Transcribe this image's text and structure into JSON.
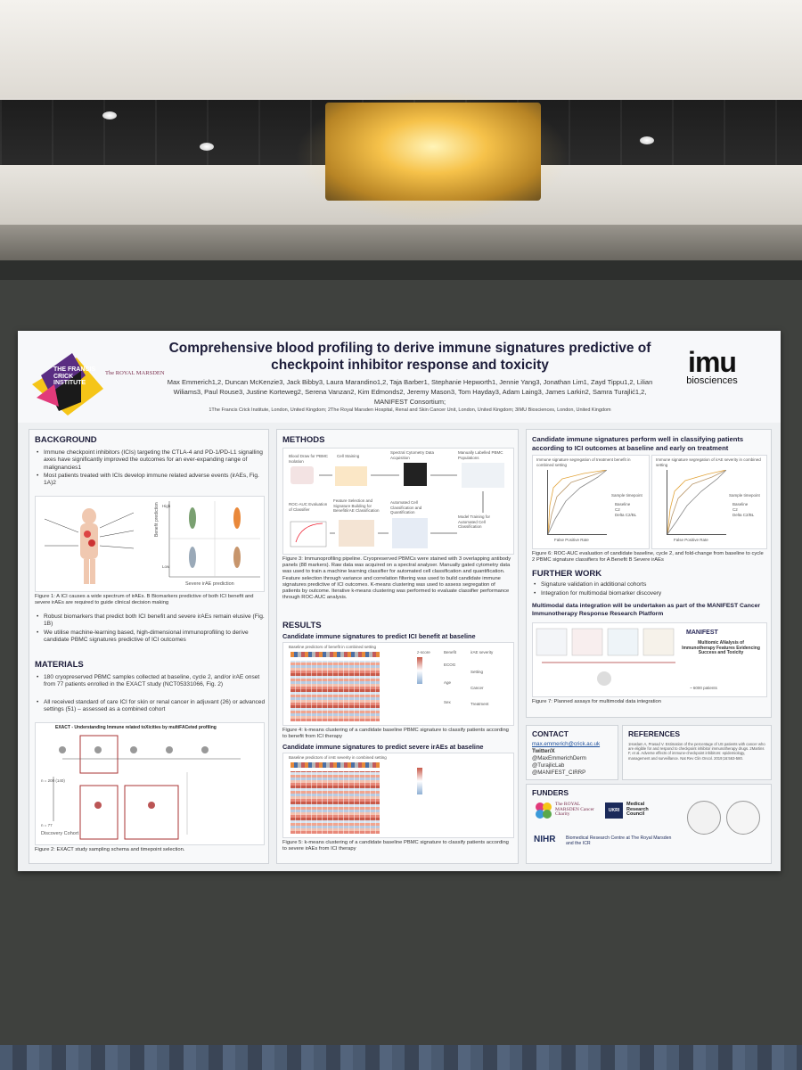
{
  "poster": {
    "title": "Comprehensive blood profiling to derive immune signatures predictive of checkpoint inhibitor response and toxicity",
    "authors": "Max Emmerich1,2, Duncan McKenzie3, Jack Bibby3, Laura Marandino1,2, Taja Barber1, Stephanie Hepworth1, Jennie Yang3, Jonathan Lim1, Zayd Tippu1,2, Lilian Wiliams3, Paul Rouse3, Justine Korteweg2, Serena Vanzan2, Kim Edmonds2, Jeremy Mason3, Tom Hayday3, Adam Laing3, James Larkin2, Samra Turajlić1,2, MANIFEST Consortium;",
    "affiliations": "1The Francis Crick Institute, London, United Kingdom; 2The Royal Marsden Hospital, Renal and Skin Cancer Unit, London, United Kingdom; 3IMU Biosciences, London, United Kingdom",
    "logos": {
      "crick": "THE FRANCIS CRICK INSTITUTE",
      "royal_marsden": "The ROYAL MARSDEN",
      "imu_main": "imu",
      "imu_sub": "biosciences"
    },
    "background": {
      "heading": "BACKGROUND",
      "bullets": [
        "Immune checkpoint inhibitors (ICIs) targeting the CTLA-4 and PD-1/PD-L1 signalling axes have significantly improved the outcomes for an ever-expanding range of malignancies1",
        "Most patients treated with ICIs develop immune related adverse events (irAEs, Fig. 1A)2"
      ],
      "fig1_caption": "Figure 1: A ICI causes a wide spectrum of irAEs. B Biomarkers predictive of both ICI benefit and severe irAEs are required to guide clinical decision making",
      "fig1_ylabel": "Benefit prediction",
      "fig1_xlabel": "Severe irAE prediction",
      "fig1_high": "High",
      "fig1_low": "Low",
      "bullets2": [
        "Robust biomarkers that predict both ICI benefit and severe irAEs remain elusive (Fig. 1B)",
        "We utilise machine-learning based, high-dimensional immunoprofiling to derive candidate PBMC signatures predictive of ICI outcomes"
      ]
    },
    "materials": {
      "heading": "MATERIALS",
      "bullets": [
        "180 cryopreserved PBMC samples collected at baseline, cycle 2, and/or irAE onset from 77 patients enrolled in the EXACT study (NCT05331066, Fig. 2)",
        "All received standard of care ICI for skin or renal cancer in adjuvant (26) or advanced settings (51) – assessed as a combined cohort"
      ],
      "fig2_title": "EXACT - Understanding Immune related toXicities by multiFACeted profiling",
      "fig2_n1": "n = 200 (140)",
      "fig2_n2": "n = 77",
      "fig2_cohort": "Discovery Cohort",
      "fig2_caption": "Figure 2: EXACT study sampling schema and timepoint selection."
    },
    "methods": {
      "heading": "METHODS",
      "steps": [
        "Blood Draw for PBMC Isolation",
        "Cell Staining",
        "Spectral Cytometry Data Acquisition",
        "Manually Labelled PBMC Populations",
        "ROC-AUC Evaluation of Classifier",
        "Feature Selection and Signature Building for Benefit/irAE Classification",
        "Automated Cell Classification and Quantification",
        "Model Training for Automated Cell Classification"
      ],
      "fig3_caption": "Figure 3: Immunoprofiling pipeline. Cryopreserved PBMCs were stained with 3 overlapping antibody panels (88 markers). Raw data was acquired on a spectral analyser. Manually gated cytometry data was used to train a machine learning classifier for automated cell classification and quantification. Feature selection through variance and correlation filtering was used to build candidate immune signatures predictive of ICI outcomes. K-means clustering was used to assess segregation of patients by outcome. Iterative k-means clustering was performed to evaluate classifier performance through ROC-AUC analysis."
    },
    "results": {
      "heading": "RESULTS",
      "sub1": "Candidate immune signatures to predict ICI benefit at baseline",
      "fig4_title": "Baseline predictors of benefit in combined setting",
      "fig4_caption": "Figure 4: k-means clustering of a candidate baseline PBMC signature to classify patients according to benefit from ICI therapy",
      "sub2": "Candidate immune signatures to predict severe irAEs at baseline",
      "fig5_title": "Baseline predictors of irAE severity in combined setting",
      "fig5_caption": "Figure 5: k-means clustering of a candidate baseline PBMC signature to classify patients according to severe irAEs from ICI therapy",
      "legend_labels": [
        "z-score",
        "Benefit",
        "ECOG",
        "Age",
        "Sex",
        "irAE severity",
        "Setting",
        "Cancer",
        "Treatment"
      ]
    },
    "right": {
      "heading": "Candidate immune signatures perform well in classifying patients according to ICI outcomes at baseline and early on treatment",
      "roc1_title": "Immune signature segregation of treatment benefit in combined setting",
      "roc2_title": "Immune signature segregation of irAE severity in combined setting",
      "roc_x": "False Positive Rate",
      "roc_y": "True Positive Rate",
      "roc_legend_title": "Sample timepoint",
      "roc_legend": [
        "Baseline",
        "C2",
        "Delta C2/BL"
      ],
      "fig6_caption": "Figure 6: ROC-AUC evaluation of candidate baseline, cycle 2, and fold-change from baseline to cycle 2 PBMC signature classifiers for A Benefit B Severe irAEs",
      "further_heading": "FURTHER WORK",
      "further_bullets": [
        "Signature validation in additional cohorts",
        "Integration for multimodal biomarker discovery"
      ],
      "multimodal": "Multimodal data integration will be undertaken as part of the MANIFEST Cancer Immunotherapy Response Research Platform",
      "manifest": "MANIFEST",
      "manifest_sub": "Multiomic ANalysis of Immunotherapy Features Evidencing Success and Toxicity",
      "patients": "~ 6000 patients",
      "fig7_caption": "Figure 7: Planned assays for multimodal data integration",
      "contact_heading": "CONTACT",
      "contact_email": "max.emmerich@crick.ac.uk",
      "contact_tw": "Twitter/X",
      "contact_handles": [
        "@MaxEmmerichDerm",
        "@TurajlicLab",
        "@MANIFEST_CIRRP"
      ],
      "references_heading": "REFERENCES",
      "references_text": "1Haslam A, Prasad V. Estimation of the percentage of US patients with cancer who are eligible for and respond to checkpoint inhibitor immunotherapy drugs. 2Martins F, et al. Adverse effects of immune-checkpoint inhibitors: epidemiology, management and surveillance. Nat Rev Clin Oncol. 2019;16:563-580.",
      "funders_heading": "FUNDERS",
      "funder_rm": "The ROYAL MARSDEN Cancer Charity",
      "funder_ukri": "UKRI",
      "funder_mrc": "Medical Research Council",
      "funder_nihr": "NIHR",
      "funder_nihr_text": "Biomedical Research Centre at The Royal Marsden and the ICR"
    }
  },
  "colors": {
    "title": "#1d1d3a",
    "crick_yellow": "#f5c518",
    "crick_purple": "#5a2d82",
    "heat_red": "#c85a4a",
    "heat_blue": "#8fb0d4"
  }
}
